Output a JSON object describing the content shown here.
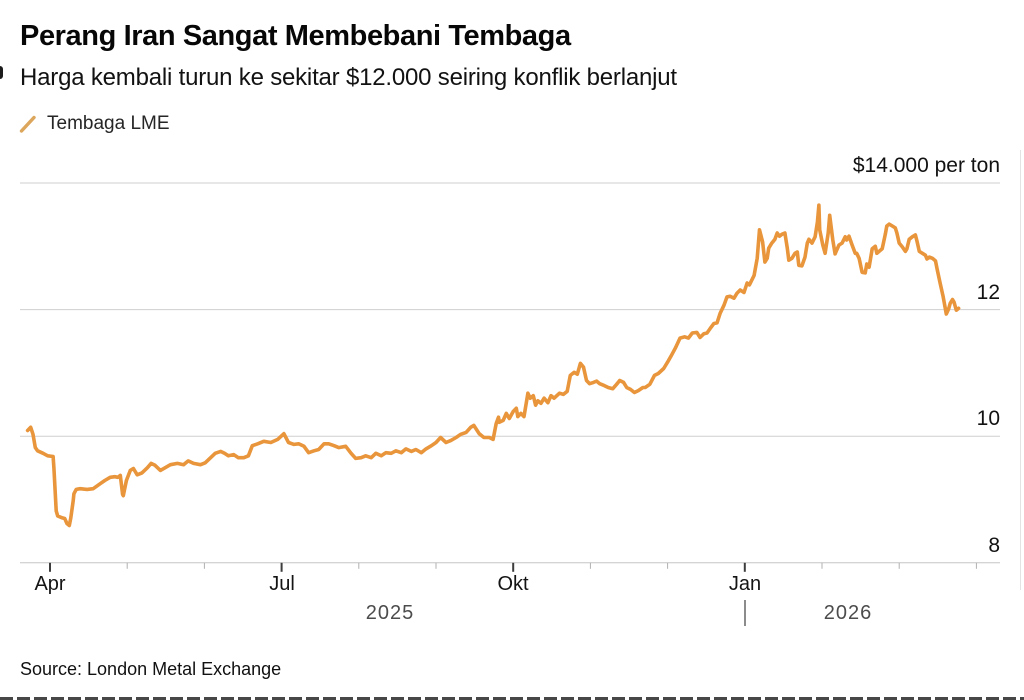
{
  "source": "Source: London Metal Exchange",
  "colors": {
    "line": "#E8953C",
    "legend_marker": "#DCA75C",
    "grid": "#CFCFCF",
    "axis": "#C6C6C6",
    "tick_major": "#3C3C3C",
    "tick_minor": "#B0B0B0",
    "background": "#FFFFFF"
  },
  "chart_data": {
    "type": "line",
    "title": "Perang Iran Sangat Membebani Tembaga",
    "subtitle": "Harga kembali turun ke sekitar $12.000 seiring konflik berlanjut",
    "legend_position": "top-left",
    "grid": "horizontal-only",
    "y_axis": {
      "unit_label": "$14.000 per ton",
      "unit": "thousand USD per ton",
      "gridline_values": [
        14,
        12,
        10
      ],
      "axis_value": 8,
      "tick_labels": [
        "12",
        "10",
        "8"
      ],
      "range": [
        8,
        14.65
      ],
      "labels_side": "right"
    },
    "x_axis": {
      "start": "Apr 2025",
      "end": "Apr 2026",
      "tick_months": [
        0,
        1,
        2,
        3,
        4,
        5,
        6,
        7,
        8,
        9,
        10,
        11,
        12
      ],
      "major_tick_months": [
        0,
        3,
        6,
        9
      ],
      "month_labels": [
        {
          "text": "Apr",
          "month": 0
        },
        {
          "text": "Jul",
          "month": 3
        },
        {
          "text": "Okt",
          "month": 6
        },
        {
          "text": "Jan",
          "month": 9
        }
      ],
      "year_labels": [
        {
          "text": "2025"
        },
        {
          "text": "2026"
        }
      ]
    },
    "series": [
      {
        "name": "Tembaga LME",
        "color": "#E8953C",
        "x_unit": "months since 1 Apr 2025",
        "points": [
          [
            -0.29,
            10.09
          ],
          [
            -0.25,
            10.14
          ],
          [
            -0.22,
            10.03
          ],
          [
            -0.19,
            9.82
          ],
          [
            -0.16,
            9.77
          ],
          [
            -0.09,
            9.73
          ],
          [
            -0.03,
            9.69
          ],
          [
            0.04,
            9.68
          ],
          [
            0.05,
            9.5
          ],
          [
            0.08,
            8.82
          ],
          [
            0.1,
            8.74
          ],
          [
            0.16,
            8.71
          ],
          [
            0.19,
            8.7
          ],
          [
            0.22,
            8.62
          ],
          [
            0.25,
            8.59
          ],
          [
            0.27,
            8.71
          ],
          [
            0.3,
            8.98
          ],
          [
            0.31,
            9.09
          ],
          [
            0.34,
            9.16
          ],
          [
            0.39,
            9.17
          ],
          [
            0.48,
            9.16
          ],
          [
            0.56,
            9.17
          ],
          [
            0.65,
            9.25
          ],
          [
            0.71,
            9.3
          ],
          [
            0.78,
            9.35
          ],
          [
            0.84,
            9.36
          ],
          [
            0.88,
            9.35
          ],
          [
            0.91,
            9.38
          ],
          [
            0.94,
            9.08
          ],
          [
            0.95,
            9.06
          ],
          [
            0.99,
            9.3
          ],
          [
            1.04,
            9.46
          ],
          [
            1.08,
            9.49
          ],
          [
            1.13,
            9.39
          ],
          [
            1.19,
            9.42
          ],
          [
            1.26,
            9.5
          ],
          [
            1.31,
            9.57
          ],
          [
            1.36,
            9.54
          ],
          [
            1.43,
            9.46
          ],
          [
            1.49,
            9.5
          ],
          [
            1.56,
            9.55
          ],
          [
            1.65,
            9.57
          ],
          [
            1.73,
            9.55
          ],
          [
            1.79,
            9.61
          ],
          [
            1.86,
            9.57
          ],
          [
            1.95,
            9.55
          ],
          [
            2.01,
            9.58
          ],
          [
            2.08,
            9.66
          ],
          [
            2.14,
            9.73
          ],
          [
            2.21,
            9.76
          ],
          [
            2.26,
            9.73
          ],
          [
            2.31,
            9.69
          ],
          [
            2.38,
            9.71
          ],
          [
            2.44,
            9.66
          ],
          [
            2.51,
            9.66
          ],
          [
            2.57,
            9.69
          ],
          [
            2.62,
            9.85
          ],
          [
            2.69,
            9.88
          ],
          [
            2.77,
            9.92
          ],
          [
            2.86,
            9.9
          ],
          [
            2.95,
            9.95
          ],
          [
            3.03,
            10.04
          ],
          [
            3.09,
            9.9
          ],
          [
            3.16,
            9.87
          ],
          [
            3.22,
            9.88
          ],
          [
            3.29,
            9.84
          ],
          [
            3.35,
            9.74
          ],
          [
            3.42,
            9.77
          ],
          [
            3.48,
            9.79
          ],
          [
            3.55,
            9.88
          ],
          [
            3.61,
            9.88
          ],
          [
            3.68,
            9.85
          ],
          [
            3.74,
            9.82
          ],
          [
            3.83,
            9.84
          ],
          [
            3.9,
            9.73
          ],
          [
            3.96,
            9.65
          ],
          [
            4.03,
            9.66
          ],
          [
            4.09,
            9.69
          ],
          [
            4.16,
            9.66
          ],
          [
            4.22,
            9.73
          ],
          [
            4.29,
            9.69
          ],
          [
            4.35,
            9.74
          ],
          [
            4.42,
            9.73
          ],
          [
            4.48,
            9.77
          ],
          [
            4.55,
            9.74
          ],
          [
            4.61,
            9.8
          ],
          [
            4.68,
            9.76
          ],
          [
            4.74,
            9.79
          ],
          [
            4.81,
            9.74
          ],
          [
            4.87,
            9.8
          ],
          [
            4.94,
            9.85
          ],
          [
            5.0,
            9.9
          ],
          [
            5.06,
            9.98
          ],
          [
            5.13,
            9.9
          ],
          [
            5.19,
            9.93
          ],
          [
            5.26,
            9.98
          ],
          [
            5.32,
            10.03
          ],
          [
            5.39,
            10.06
          ],
          [
            5.45,
            10.14
          ],
          [
            5.49,
            10.17
          ],
          [
            5.56,
            10.04
          ],
          [
            5.62,
            9.98
          ],
          [
            5.69,
            9.98
          ],
          [
            5.74,
            9.95
          ],
          [
            5.78,
            10.2
          ],
          [
            5.81,
            10.3
          ],
          [
            5.82,
            10.22
          ],
          [
            5.87,
            10.25
          ],
          [
            5.91,
            10.36
          ],
          [
            5.95,
            10.28
          ],
          [
            6.0,
            10.39
          ],
          [
            6.04,
            10.44
          ],
          [
            6.06,
            10.31
          ],
          [
            6.1,
            10.36
          ],
          [
            6.14,
            10.31
          ],
          [
            6.19,
            10.68
          ],
          [
            6.22,
            10.6
          ],
          [
            6.26,
            10.64
          ],
          [
            6.29,
            10.49
          ],
          [
            6.32,
            10.56
          ],
          [
            6.36,
            10.52
          ],
          [
            6.4,
            10.6
          ],
          [
            6.45,
            10.53
          ],
          [
            6.49,
            10.64
          ],
          [
            6.53,
            10.6
          ],
          [
            6.6,
            10.68
          ],
          [
            6.65,
            10.66
          ],
          [
            6.7,
            10.71
          ],
          [
            6.74,
            10.96
          ],
          [
            6.79,
            11.01
          ],
          [
            6.83,
            10.98
          ],
          [
            6.87,
            11.15
          ],
          [
            6.91,
            11.09
          ],
          [
            6.95,
            10.88
          ],
          [
            6.99,
            10.83
          ],
          [
            7.04,
            10.85
          ],
          [
            7.08,
            10.87
          ],
          [
            7.12,
            10.83
          ],
          [
            7.18,
            10.8
          ],
          [
            7.23,
            10.77
          ],
          [
            7.29,
            10.75
          ],
          [
            7.34,
            10.82
          ],
          [
            7.38,
            10.88
          ],
          [
            7.43,
            10.85
          ],
          [
            7.47,
            10.77
          ],
          [
            7.52,
            10.74
          ],
          [
            7.57,
            10.69
          ],
          [
            7.62,
            10.72
          ],
          [
            7.68,
            10.77
          ],
          [
            7.71,
            10.77
          ],
          [
            7.77,
            10.82
          ],
          [
            7.83,
            10.96
          ],
          [
            7.88,
            10.99
          ],
          [
            7.95,
            11.07
          ],
          [
            8.0,
            11.17
          ],
          [
            8.05,
            11.28
          ],
          [
            8.1,
            11.39
          ],
          [
            8.16,
            11.55
          ],
          [
            8.22,
            11.57
          ],
          [
            8.27,
            11.55
          ],
          [
            8.32,
            11.63
          ],
          [
            8.38,
            11.64
          ],
          [
            8.42,
            11.56
          ],
          [
            8.47,
            11.62
          ],
          [
            8.51,
            11.63
          ],
          [
            8.55,
            11.7
          ],
          [
            8.6,
            11.78
          ],
          [
            8.64,
            11.79
          ],
          [
            8.68,
            11.94
          ],
          [
            8.73,
            12.07
          ],
          [
            8.77,
            12.2
          ],
          [
            8.81,
            12.21
          ],
          [
            8.86,
            12.18
          ],
          [
            8.9,
            12.26
          ],
          [
            8.94,
            12.31
          ],
          [
            8.99,
            12.27
          ],
          [
            9.03,
            12.42
          ],
          [
            9.06,
            12.39
          ],
          [
            9.12,
            12.54
          ],
          [
            9.16,
            12.81
          ],
          [
            9.19,
            13.26
          ],
          [
            9.23,
            13.07
          ],
          [
            9.26,
            12.75
          ],
          [
            9.29,
            12.81
          ],
          [
            9.31,
            12.97
          ],
          [
            9.35,
            13.05
          ],
          [
            9.39,
            13.11
          ],
          [
            9.42,
            13.21
          ],
          [
            9.45,
            13.16
          ],
          [
            9.48,
            13.19
          ],
          [
            9.52,
            13.21
          ],
          [
            9.55,
            12.97
          ],
          [
            9.57,
            12.78
          ],
          [
            9.61,
            12.81
          ],
          [
            9.65,
            12.89
          ],
          [
            9.68,
            12.91
          ],
          [
            9.7,
            12.7
          ],
          [
            9.74,
            12.69
          ],
          [
            9.78,
            12.83
          ],
          [
            9.81,
            13.05
          ],
          [
            9.83,
            13.11
          ],
          [
            9.87,
            13.05
          ],
          [
            9.91,
            13.15
          ],
          [
            9.94,
            13.38
          ],
          [
            9.96,
            13.65
          ],
          [
            9.97,
            13.26
          ],
          [
            10.01,
            13.02
          ],
          [
            10.04,
            12.89
          ],
          [
            10.08,
            13.21
          ],
          [
            10.1,
            13.49
          ],
          [
            10.14,
            13.1
          ],
          [
            10.17,
            12.88
          ],
          [
            10.19,
            12.94
          ],
          [
            10.22,
            13.02
          ],
          [
            10.26,
            13.05
          ],
          [
            10.3,
            13.15
          ],
          [
            10.32,
            13.1
          ],
          [
            10.35,
            13.16
          ],
          [
            10.39,
            13.02
          ],
          [
            10.43,
            12.89
          ],
          [
            10.45,
            12.89
          ],
          [
            10.48,
            12.81
          ],
          [
            10.52,
            12.59
          ],
          [
            10.56,
            12.58
          ],
          [
            10.58,
            12.72
          ],
          [
            10.61,
            12.67
          ],
          [
            10.65,
            12.96
          ],
          [
            10.69,
            13.0
          ],
          [
            10.71,
            12.89
          ],
          [
            10.74,
            12.92
          ],
          [
            10.78,
            12.96
          ],
          [
            10.82,
            13.19
          ],
          [
            10.84,
            13.32
          ],
          [
            10.87,
            13.35
          ],
          [
            10.91,
            13.32
          ],
          [
            10.95,
            13.29
          ],
          [
            10.97,
            13.21
          ],
          [
            11.0,
            13.05
          ],
          [
            11.04,
            12.99
          ],
          [
            11.08,
            12.92
          ],
          [
            11.1,
            12.96
          ],
          [
            11.13,
            13.11
          ],
          [
            11.17,
            13.15
          ],
          [
            11.21,
            13.18
          ],
          [
            11.23,
            13.08
          ],
          [
            11.26,
            12.92
          ],
          [
            11.3,
            12.89
          ],
          [
            11.34,
            12.86
          ],
          [
            11.36,
            12.8
          ],
          [
            11.39,
            12.83
          ],
          [
            11.43,
            12.81
          ],
          [
            11.47,
            12.77
          ],
          [
            11.49,
            12.65
          ],
          [
            11.53,
            12.42
          ],
          [
            11.57,
            12.2
          ],
          [
            11.61,
            11.93
          ],
          [
            11.64,
            12.01
          ],
          [
            11.66,
            12.1
          ],
          [
            11.69,
            12.16
          ],
          [
            11.71,
            12.12
          ],
          [
            11.74,
            11.99
          ],
          [
            11.77,
            12.02
          ]
        ]
      }
    ]
  }
}
